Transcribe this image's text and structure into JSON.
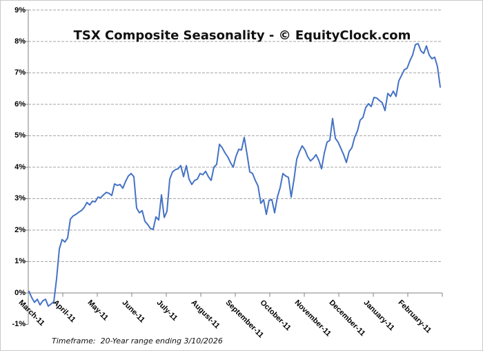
{
  "page": {
    "background_color": "#ffffff",
    "border_color": "#c9c9c9"
  },
  "chart_data": {
    "type": "line",
    "title": "TSX Composite Seasonality - © EquityClock.com",
    "footer": "Timeframe:  20-Year range ending 3/10/2026",
    "legend": "none",
    "grid_on": true,
    "line_color": "#4472C4",
    "axis_color": "#808080",
    "gridline_color": "#A6A6A6",
    "y_axis_range": [
      -1,
      9
    ],
    "y_tick_labels": [
      "9%",
      "8%",
      "7%",
      "6%",
      "5%",
      "4%",
      "3%",
      "2%",
      "1%",
      "0%",
      "-1%"
    ],
    "y_tick_values": [
      9,
      8,
      7,
      6,
      5,
      4,
      3,
      2,
      1,
      0,
      -1
    ],
    "y_gridline_values": [
      1,
      2,
      3,
      4,
      5,
      6,
      7,
      8,
      9
    ],
    "x_tick_labels": [
      "March-11",
      "April-11",
      "May-11",
      "June-11",
      "July-11",
      "August-11",
      "September-11",
      "October-11",
      "November-11",
      "December-11",
      "January-11",
      "February-11"
    ],
    "x_axis_note": "monthly ticks, March through February, daily seasonality line",
    "values_pct": [
      0.05,
      -0.15,
      -0.3,
      -0.2,
      -0.38,
      -0.25,
      -0.2,
      -0.42,
      -0.35,
      -0.28,
      0.45,
      1.4,
      1.7,
      1.62,
      1.75,
      2.35,
      2.45,
      2.5,
      2.57,
      2.62,
      2.72,
      2.88,
      2.8,
      2.92,
      2.9,
      3.05,
      3.03,
      3.12,
      3.2,
      3.17,
      3.1,
      3.47,
      3.42,
      3.45,
      3.33,
      3.55,
      3.72,
      3.8,
      3.7,
      2.7,
      2.55,
      2.62,
      2.28,
      2.18,
      2.05,
      2.02,
      2.42,
      2.32,
      3.12,
      2.4,
      2.6,
      3.62,
      3.85,
      3.92,
      3.95,
      4.05,
      3.7,
      4.05,
      3.62,
      3.45,
      3.58,
      3.62,
      3.8,
      3.76,
      3.87,
      3.7,
      3.58,
      4.0,
      4.09,
      4.73,
      4.62,
      4.46,
      4.33,
      4.15,
      4.0,
      4.35,
      4.57,
      4.55,
      4.95,
      4.42,
      3.85,
      3.8,
      3.58,
      3.4,
      2.85,
      2.97,
      2.5,
      2.95,
      2.97,
      2.55,
      3.05,
      3.35,
      3.8,
      3.72,
      3.68,
      3.05,
      3.6,
      4.25,
      4.5,
      4.68,
      4.55,
      4.33,
      4.2,
      4.28,
      4.4,
      4.22,
      3.95,
      4.45,
      4.8,
      4.85,
      5.55,
      4.92,
      4.8,
      4.6,
      4.4,
      4.15,
      4.5,
      4.62,
      4.95,
      5.15,
      5.5,
      5.58,
      5.9,
      6.02,
      5.93,
      6.22,
      6.2,
      6.12,
      6.05,
      5.8,
      6.35,
      6.25,
      6.42,
      6.25,
      6.75,
      6.92,
      7.1,
      7.15,
      7.38,
      7.57,
      7.9,
      7.93,
      7.7,
      7.62,
      7.86,
      7.57,
      7.45,
      7.5,
      7.2,
      6.55
    ]
  }
}
